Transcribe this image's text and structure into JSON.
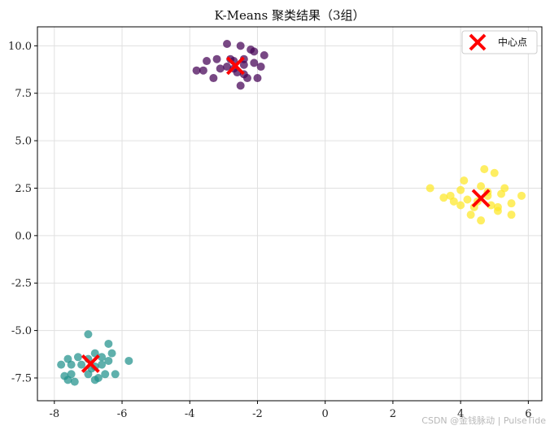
{
  "chart_data": {
    "type": "scatter",
    "title": "K-Means 聚类结果（3组）",
    "xlabel": "",
    "ylabel": "",
    "xlim": [
      -8.5,
      6.4
    ],
    "ylim": [
      -8.7,
      11.0
    ],
    "xticks": [
      -8,
      -6,
      -4,
      -2,
      0,
      2,
      4,
      6
    ],
    "xtick_labels": [
      "-8",
      "-6",
      "-4",
      "-2",
      "0",
      "2",
      "4",
      "6"
    ],
    "yticks": [
      -7.5,
      -5.0,
      -2.5,
      0.0,
      2.5,
      5.0,
      7.5,
      10.0
    ],
    "ytick_labels": [
      "-7.5",
      "-5.0",
      "-2.5",
      "0.0",
      "2.5",
      "5.0",
      "7.5",
      "10.0"
    ],
    "grid": true,
    "legend": {
      "position": "top-right",
      "entries": [
        "中心点"
      ]
    },
    "clusters": [
      {
        "color": "#440154",
        "points": [
          [
            -2.9,
            10.1
          ],
          [
            -2.5,
            10.0
          ],
          [
            -2.2,
            9.8
          ],
          [
            -2.1,
            9.7
          ],
          [
            -1.8,
            9.5
          ],
          [
            -3.5,
            9.2
          ],
          [
            -3.2,
            9.3
          ],
          [
            -2.8,
            9.3
          ],
          [
            -2.7,
            9.2
          ],
          [
            -2.4,
            9.3
          ],
          [
            -2.1,
            9.1
          ],
          [
            -3.6,
            8.7
          ],
          [
            -3.3,
            8.3
          ],
          [
            -3.1,
            8.8
          ],
          [
            -2.9,
            8.9
          ],
          [
            -2.6,
            8.6
          ],
          [
            -2.4,
            8.5
          ],
          [
            -2.3,
            8.3
          ],
          [
            -2.5,
            7.9
          ],
          [
            -2.0,
            8.3
          ],
          [
            -3.8,
            8.7
          ],
          [
            -1.9,
            8.9
          ],
          [
            -2.7,
            8.8
          ],
          [
            -2.4,
            9.0
          ]
        ]
      },
      {
        "color": "#21918c",
        "points": [
          [
            -7.0,
            -5.2
          ],
          [
            -6.4,
            -5.7
          ],
          [
            -6.3,
            -6.2
          ],
          [
            -5.8,
            -6.6
          ],
          [
            -7.3,
            -6.4
          ],
          [
            -7.0,
            -6.5
          ],
          [
            -6.8,
            -6.2
          ],
          [
            -6.6,
            -6.4
          ],
          [
            -7.6,
            -6.5
          ],
          [
            -7.5,
            -6.8
          ],
          [
            -7.8,
            -6.8
          ],
          [
            -7.2,
            -6.8
          ],
          [
            -6.8,
            -6.9
          ],
          [
            -6.6,
            -6.8
          ],
          [
            -6.4,
            -6.6
          ],
          [
            -7.7,
            -7.4
          ],
          [
            -7.5,
            -7.3
          ],
          [
            -7.0,
            -7.3
          ],
          [
            -6.8,
            -7.6
          ],
          [
            -6.5,
            -7.3
          ],
          [
            -6.2,
            -7.3
          ],
          [
            -7.6,
            -7.6
          ],
          [
            -7.4,
            -7.7
          ],
          [
            -6.7,
            -7.5
          ],
          [
            -6.9,
            -7.0
          ]
        ]
      },
      {
        "color": "#fde725",
        "points": [
          [
            4.7,
            3.5
          ],
          [
            4.1,
            2.9
          ],
          [
            5.0,
            3.3
          ],
          [
            3.1,
            2.5
          ],
          [
            4.6,
            2.6
          ],
          [
            5.3,
            2.5
          ],
          [
            3.5,
            2.0
          ],
          [
            3.7,
            2.1
          ],
          [
            3.8,
            1.8
          ],
          [
            4.2,
            1.9
          ],
          [
            4.5,
            1.8
          ],
          [
            4.8,
            2.1
          ],
          [
            5.2,
            2.2
          ],
          [
            5.5,
            1.7
          ],
          [
            5.8,
            2.1
          ],
          [
            4.0,
            1.6
          ],
          [
            4.4,
            1.5
          ],
          [
            4.9,
            1.6
          ],
          [
            5.1,
            1.3
          ],
          [
            4.3,
            1.1
          ],
          [
            4.6,
            0.8
          ],
          [
            5.5,
            1.1
          ],
          [
            4.0,
            2.4
          ],
          [
            4.8,
            2.3
          ],
          [
            5.1,
            1.5
          ]
        ]
      }
    ],
    "centers": [
      {
        "x": -2.65,
        "y": 8.95,
        "color": "#ff0000"
      },
      {
        "x": -6.93,
        "y": -6.75,
        "color": "#ff0000"
      },
      {
        "x": 4.6,
        "y": 1.97,
        "color": "#ff0000"
      }
    ]
  },
  "watermark": "CSDN @金钱脉动 | PulseTide"
}
